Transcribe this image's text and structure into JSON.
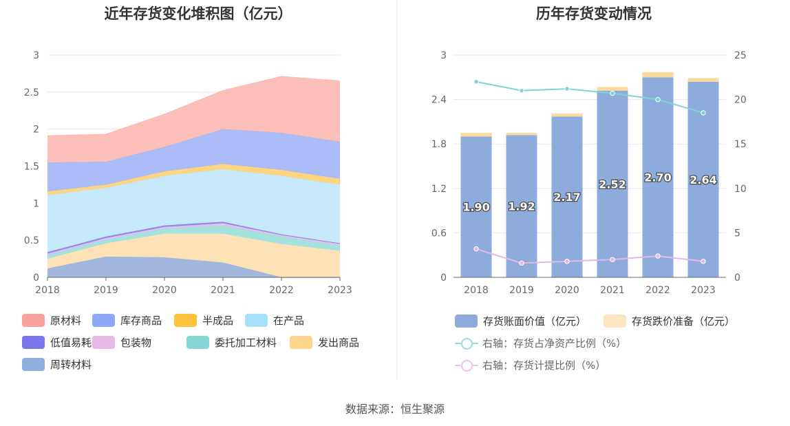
{
  "source_text": "数据来源：恒生聚源",
  "left_chart": {
    "title": "近年存货变化堆积图（亿元）"
  },
  "right_chart": {
    "title": "历年存货变动情况"
  },
  "chart_data": [
    {
      "type": "area",
      "title": "近年存货变化堆积图（亿元）",
      "x": [
        "2018",
        "2019",
        "2020",
        "2021",
        "2022",
        "2023"
      ],
      "ylim": [
        0,
        3
      ],
      "yticks": [
        "0",
        "0.5",
        "1",
        "1.5",
        "2",
        "2.5",
        "3"
      ],
      "stacked": true,
      "grid": true,
      "legend_position": "bottom",
      "series": [
        {
          "name": "周转材料",
          "color": "#9db3dc",
          "values": [
            0.12,
            0.28,
            0.27,
            0.2,
            0.0,
            0.0
          ]
        },
        {
          "name": "发出商品",
          "color": "#fde0b3",
          "values": [
            0.13,
            0.18,
            0.32,
            0.39,
            0.45,
            0.36
          ]
        },
        {
          "name": "委托加工材料",
          "color": "#9fe0de",
          "values": [
            0.05,
            0.05,
            0.07,
            0.11,
            0.1,
            0.07
          ]
        },
        {
          "name": "包装物",
          "color": "#e7bfe6",
          "values": [
            0.02,
            0.02,
            0.02,
            0.03,
            0.02,
            0.02
          ]
        },
        {
          "name": "低值易耗品",
          "color": "#8a84f0",
          "values": [
            0.02,
            0.02,
            0.02,
            0.02,
            0.01,
            0.01
          ]
        },
        {
          "name": "在产品",
          "color": "#c3e8fb",
          "values": [
            0.77,
            0.66,
            0.67,
            0.71,
            0.79,
            0.79
          ]
        },
        {
          "name": "半成品",
          "color": "#fdd37a",
          "values": [
            0.05,
            0.04,
            0.06,
            0.07,
            0.08,
            0.08
          ]
        },
        {
          "name": "库存商品",
          "color": "#a6b8f8",
          "values": [
            0.39,
            0.31,
            0.33,
            0.47,
            0.5,
            0.5
          ]
        },
        {
          "name": "原材料",
          "color": "#fcbcb6",
          "values": [
            0.36,
            0.37,
            0.44,
            0.52,
            0.76,
            0.82
          ]
        }
      ],
      "legend": [
        {
          "name": "原材料",
          "color": "#f9a29b"
        },
        {
          "name": "库存商品",
          "color": "#8ea7f7"
        },
        {
          "name": "半成品",
          "color": "#fdc33e"
        },
        {
          "name": "在产品",
          "color": "#a6e0fa"
        },
        {
          "name": "低值易耗品",
          "color": "#7c76ec"
        },
        {
          "name": "包装物",
          "color": "#e8b9e6"
        },
        {
          "name": "委托加工材料",
          "color": "#86d6d6"
        },
        {
          "name": "发出商品",
          "color": "#fdd68f"
        },
        {
          "name": "周转材料",
          "color": "#8fb0de"
        }
      ]
    },
    {
      "type": "bar",
      "title": "历年存货变动情况",
      "categories": [
        "2018",
        "2019",
        "2020",
        "2021",
        "2022",
        "2023"
      ],
      "ylim": [
        0,
        3
      ],
      "yticks": [
        "0",
        "0.6",
        "1.2",
        "1.8",
        "2.4",
        "3"
      ],
      "y2lim": [
        0,
        25
      ],
      "y2ticks": [
        "0",
        "5",
        "10",
        "15",
        "20",
        "25"
      ],
      "stacked": true,
      "grid": true,
      "legend_position": "bottom",
      "series": [
        {
          "name": "存货账面价值（亿元）",
          "axis": "left",
          "kind": "bar",
          "color": "#8eacdb",
          "values": [
            1.9,
            1.92,
            2.17,
            2.52,
            2.7,
            2.64
          ],
          "labels": [
            "1.90",
            "1.92",
            "2.17",
            "2.52",
            "2.70",
            "2.64"
          ]
        },
        {
          "name": "存货跌价准备（亿元）",
          "axis": "left",
          "kind": "bar",
          "color": "#fcd99c",
          "values": [
            0.05,
            0.03,
            0.04,
            0.05,
            0.07,
            0.05
          ]
        },
        {
          "name": "右轴：存货占净资产比例（%）",
          "axis": "right",
          "kind": "line",
          "color": "#7dd3d3",
          "values": [
            22.0,
            21.0,
            21.2,
            20.7,
            20.0,
            18.5
          ]
        },
        {
          "name": "右轴：存货计提比例（%）",
          "axis": "right",
          "kind": "line",
          "color": "#e6b6e3",
          "values": [
            3.2,
            1.6,
            1.8,
            2.0,
            2.4,
            1.8
          ]
        }
      ],
      "legend": [
        {
          "name": "存货账面价值（亿元）",
          "color": "#8eacdb",
          "kind": "bar"
        },
        {
          "name": "存货跌价准备（亿元）",
          "color": "#fde5c2",
          "kind": "bar"
        },
        {
          "name": "右轴：存货占净资产比例（%）",
          "color": "#9adede",
          "kind": "line"
        },
        {
          "name": "右轴：存货计提比例（%）",
          "color": "#ecc3ea",
          "kind": "line"
        }
      ]
    }
  ]
}
